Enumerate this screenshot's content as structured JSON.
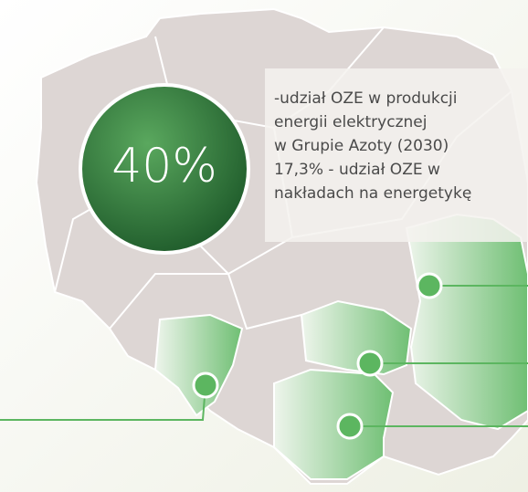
{
  "badge": {
    "label": "40%"
  },
  "description": {
    "lines": [
      "-udział OZE w produkcji",
      "energii elektrycznej",
      "w Grupie Azoty (2030)",
      "17,3% - udział OZE w",
      "nakładach na energetykę"
    ]
  }
}
